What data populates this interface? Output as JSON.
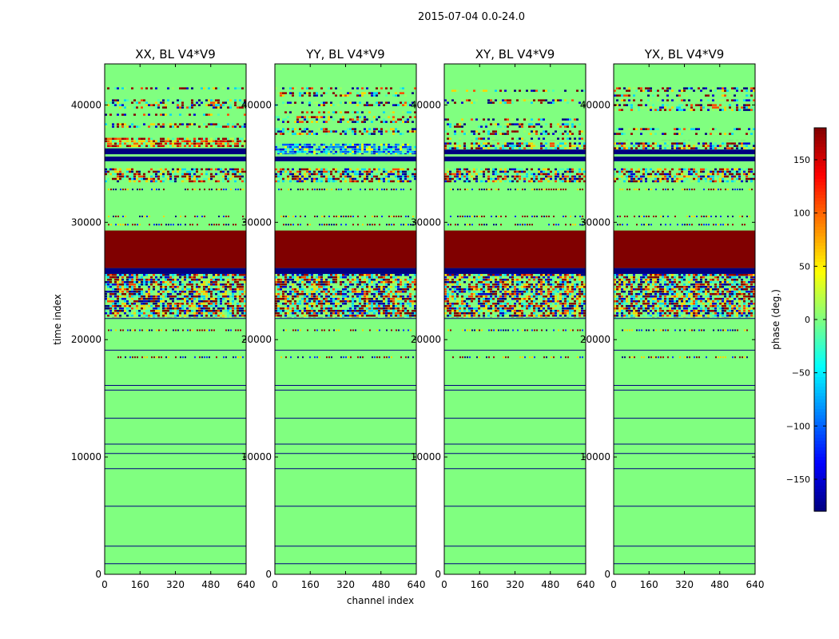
{
  "figure": {
    "suptitle": "2015-07-04 0.0-24.0"
  },
  "chart_data": {
    "type": "heatmap",
    "suptitle": "2015-07-04 0.0-24.0",
    "xlabel": "channel index",
    "ylabel": "time index",
    "xlim": [
      0,
      640
    ],
    "ylim": [
      0,
      43500
    ],
    "xticks": [
      0,
      160,
      320,
      480,
      640
    ],
    "yticks": [
      0,
      10000,
      20000,
      30000,
      40000
    ],
    "colorbar": {
      "label": "phase (deg.)",
      "range": [
        -180,
        180
      ],
      "ticks": [
        150,
        100,
        50,
        0,
        -50,
        -100,
        -150
      ],
      "tick_labels": [
        "150",
        "100",
        "50",
        "0",
        "−50",
        "−100",
        "−150"
      ],
      "colormap": "jet"
    },
    "panels": [
      {
        "title": "XX, BL V4*V9",
        "background_phase": 0,
        "solid_bands": [
          {
            "from": 29300,
            "to": 26100,
            "phase": 180
          },
          {
            "from": 26100,
            "to": 25600,
            "phase": -180
          },
          {
            "from": 36300,
            "to": 35800,
            "phase": -180
          },
          {
            "from": 35600,
            "to": 35200,
            "phase": -180
          }
        ],
        "noise_bands": [
          {
            "from": 25600,
            "to": 21900,
            "style": "full"
          },
          {
            "from": 34600,
            "to": 33400,
            "style": "dense"
          },
          {
            "from": 37200,
            "to": 36400,
            "style": "warm"
          },
          {
            "from": 41500,
            "to": 37300,
            "style": "striped"
          }
        ],
        "sparse_lines": [
          29800,
          30500,
          32800,
          20800,
          18500
        ],
        "lines": [
          900,
          2400,
          5800,
          9000,
          10300,
          11100,
          13300,
          15700,
          16100,
          19100,
          21800
        ]
      },
      {
        "title": "YY, BL V4*V9",
        "background_phase": 0,
        "solid_bands": [
          {
            "from": 29300,
            "to": 26100,
            "phase": 180
          },
          {
            "from": 26100,
            "to": 25600,
            "phase": -180
          },
          {
            "from": 35600,
            "to": 35200,
            "phase": -180
          }
        ],
        "noise_bands": [
          {
            "from": 25600,
            "to": 21900,
            "style": "full"
          },
          {
            "from": 34600,
            "to": 33400,
            "style": "dense"
          },
          {
            "from": 36700,
            "to": 35800,
            "style": "cold"
          },
          {
            "from": 41500,
            "to": 37300,
            "style": "striped"
          }
        ],
        "sparse_lines": [
          29800,
          30500,
          32800,
          20800,
          18500
        ],
        "lines": [
          900,
          2400,
          5800,
          9000,
          10300,
          11100,
          13300,
          15700,
          16100,
          19100,
          21800
        ]
      },
      {
        "title": "XY, BL V4*V9",
        "background_phase": 0,
        "solid_bands": [
          {
            "from": 29300,
            "to": 26100,
            "phase": 180
          },
          {
            "from": 26100,
            "to": 25600,
            "phase": -180
          },
          {
            "from": 36200,
            "to": 35800,
            "phase": -180
          },
          {
            "from": 35600,
            "to": 35200,
            "phase": -180
          }
        ],
        "noise_bands": [
          {
            "from": 25600,
            "to": 21900,
            "style": "full"
          },
          {
            "from": 34600,
            "to": 33400,
            "style": "dense"
          },
          {
            "from": 36800,
            "to": 36200,
            "style": "dense"
          },
          {
            "from": 41500,
            "to": 37000,
            "style": "striped"
          }
        ],
        "sparse_lines": [
          29800,
          30500,
          32800,
          20800,
          18500
        ],
        "lines": [
          900,
          2400,
          5800,
          9000,
          10300,
          11100,
          13300,
          15700,
          16100,
          19100,
          21800
        ]
      },
      {
        "title": "YX, BL V4*V9",
        "background_phase": 0,
        "solid_bands": [
          {
            "from": 29300,
            "to": 26100,
            "phase": 180
          },
          {
            "from": 26100,
            "to": 25600,
            "phase": -180
          },
          {
            "from": 36200,
            "to": 35800,
            "phase": -180
          },
          {
            "from": 35600,
            "to": 35200,
            "phase": -180
          }
        ],
        "noise_bands": [
          {
            "from": 25600,
            "to": 21900,
            "style": "full"
          },
          {
            "from": 34600,
            "to": 33400,
            "style": "dense"
          },
          {
            "from": 36800,
            "to": 36200,
            "style": "dense"
          },
          {
            "from": 41500,
            "to": 37000,
            "style": "striped"
          }
        ],
        "sparse_lines": [
          29800,
          30500,
          32800,
          20800,
          18500
        ],
        "lines": [
          900,
          2400,
          5800,
          9000,
          10300,
          11100,
          13300,
          15700,
          16100,
          19100,
          21800
        ]
      }
    ]
  }
}
